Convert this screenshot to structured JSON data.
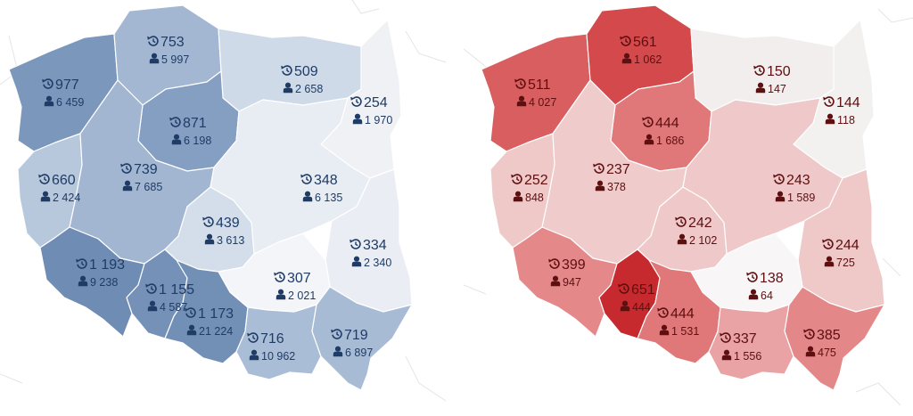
{
  "maps": [
    {
      "id": "left",
      "value_color": "#1f3c66",
      "regions": [
        {
          "id": "zachodniopomorskie",
          "value": "977",
          "people": "6 459",
          "fill": "#7b98bc"
        },
        {
          "id": "pomorskie",
          "value": "753",
          "people": "5 997",
          "fill": "#a3b7d3"
        },
        {
          "id": "warminsko-mazurskie",
          "value": "509",
          "people": "2 658",
          "fill": "#cfdae8"
        },
        {
          "id": "podlaskie",
          "value": "254",
          "people": "1 970",
          "fill": "#eff1f5"
        },
        {
          "id": "kujawsko-pomorskie",
          "value": "871",
          "people": "6 198",
          "fill": "#859fc3"
        },
        {
          "id": "lubuskie",
          "value": "660",
          "people": "2 424",
          "fill": "#b8c8dc"
        },
        {
          "id": "wielkopolskie",
          "value": "739",
          "people": "7 685",
          "fill": "#a2b6d2"
        },
        {
          "id": "mazowieckie",
          "value": "348",
          "people": "6 135",
          "fill": "#e8edf3"
        },
        {
          "id": "lodzkie",
          "value": "439",
          "people": "3 613",
          "fill": "#d3deea"
        },
        {
          "id": "lubelskie",
          "value": "334",
          "people": "2 340",
          "fill": "#eaeef4"
        },
        {
          "id": "dolnoslaskie",
          "value": "1 193",
          "people": "9 238",
          "fill": "#6f8db4"
        },
        {
          "id": "opolskie",
          "value": "1 155",
          "people": "4 587",
          "fill": "#7591b7"
        },
        {
          "id": "slaskie",
          "value": "1 173",
          "people": "21 224",
          "fill": "#7290b6"
        },
        {
          "id": "swietokrzyskie",
          "value": "307",
          "people": "2 021",
          "fill": "#f3f5f8"
        },
        {
          "id": "malopolskie",
          "value": "716",
          "people": "10 962",
          "fill": "#aabdd6"
        },
        {
          "id": "podkarpackie",
          "value": "719",
          "people": "6 897",
          "fill": "#a8bbd5"
        }
      ]
    },
    {
      "id": "right",
      "value_color": "#5e0f10",
      "regions": [
        {
          "id": "zachodniopomorskie",
          "value": "511",
          "people": "4 027",
          "fill": "#d95e5f"
        },
        {
          "id": "pomorskie",
          "value": "561",
          "people": "1 062",
          "fill": "#d44a4c"
        },
        {
          "id": "warminsko-mazurskie",
          "value": "150",
          "people": "147",
          "fill": "#f2eeee"
        },
        {
          "id": "podlaskie",
          "value": "144",
          "people": "118",
          "fill": "#f3f0f0"
        },
        {
          "id": "kujawsko-pomorskie",
          "value": "444",
          "people": "1 686",
          "fill": "#e07879"
        },
        {
          "id": "lubuskie",
          "value": "252",
          "people": "848",
          "fill": "#efc8c8"
        },
        {
          "id": "wielkopolskie",
          "value": "237",
          "people": "378",
          "fill": "#f0cbcb"
        },
        {
          "id": "mazowieckie",
          "value": "243",
          "people": "1 589",
          "fill": "#efc9c9"
        },
        {
          "id": "lodzkie",
          "value": "242",
          "people": "2 102",
          "fill": "#efc9c9"
        },
        {
          "id": "lubelskie",
          "value": "244",
          "people": "725",
          "fill": "#efc8c8"
        },
        {
          "id": "dolnoslaskie",
          "value": "399",
          "people": "947",
          "fill": "#e58889"
        },
        {
          "id": "opolskie",
          "value": "651",
          "people": "444",
          "fill": "#c72a2e"
        },
        {
          "id": "slaskie",
          "value": "444",
          "people": "1 531",
          "fill": "#e07879"
        },
        {
          "id": "swietokrzyskie",
          "value": "138",
          "people": "64",
          "fill": "#f8f6f6"
        },
        {
          "id": "malopolskie",
          "value": "337",
          "people": "1 556",
          "fill": "#e9a3a4"
        },
        {
          "id": "podkarpackie",
          "value": "385",
          "people": "475",
          "fill": "#e38788"
        }
      ]
    }
  ],
  "icons": {
    "value_icon": "history-icon",
    "people_icon": "person-icon"
  }
}
